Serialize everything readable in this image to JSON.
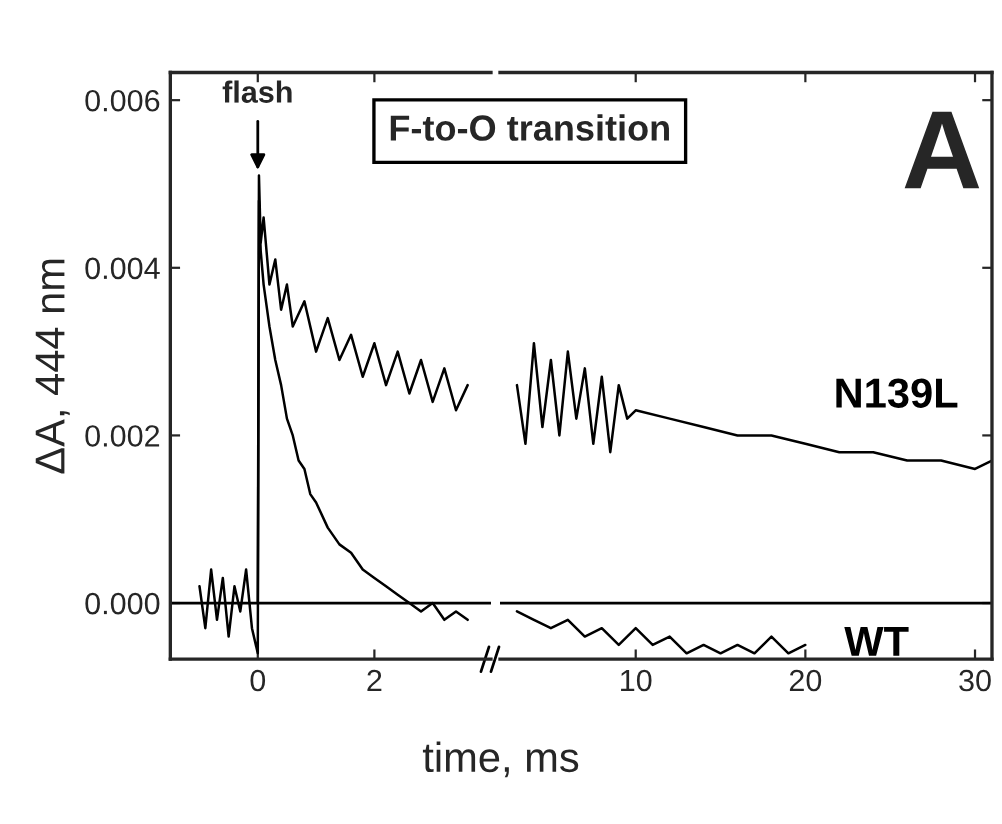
{
  "chart_data": [
    {
      "type": "line",
      "xlabel": "time, ms",
      "ylabel": "ΔA, 444 nm",
      "xlim": [
        -1.5,
        4
      ],
      "xticks": [
        0,
        2
      ],
      "ylim": [
        -0.00067,
        0.00633
      ],
      "yticks": [
        {
          "value": 0,
          "label": "0.000"
        },
        {
          "value": 0.002,
          "label": "0.002"
        },
        {
          "value": 0.004,
          "label": "0.004"
        },
        {
          "value": 0.006,
          "label": "0.006"
        }
      ],
      "legend": false,
      "grid": false,
      "ref_lines": [
        {
          "axis": "y",
          "value": 0,
          "color": "#000000"
        }
      ],
      "annotations": [
        {
          "text": "flash",
          "x": 0,
          "y": 0.0051
        },
        "F-to-O transition"
      ],
      "series": [
        {
          "color": "#000000",
          "x": [
            -1.0,
            -0.9,
            -0.8,
            -0.7,
            -0.6,
            -0.5,
            -0.4,
            -0.3,
            -0.2,
            -0.1,
            0.0,
            0.02,
            0.05,
            0.1,
            0.2,
            0.3,
            0.4,
            0.5,
            0.6,
            0.7,
            0.8,
            0.9,
            1.0,
            1.2,
            1.4,
            1.6,
            1.8,
            2.0,
            2.2,
            2.4,
            2.6,
            2.8,
            3.0,
            3.2,
            3.4,
            3.6
          ],
          "values": [
            0.0002,
            -0.0003,
            0.0004,
            -0.0002,
            0.0003,
            -0.0004,
            0.0002,
            -0.0001,
            0.0004,
            -0.0003,
            -0.0006,
            0.0048,
            0.0042,
            0.0038,
            0.0033,
            0.0029,
            0.0026,
            0.0022,
            0.002,
            0.0017,
            0.0016,
            0.0013,
            0.0012,
            0.0009,
            0.0007,
            0.0006,
            0.0004,
            0.0003,
            0.0002,
            0.0001,
            0.0,
            -0.0001,
            0.0,
            -0.0002,
            -0.0001,
            -0.0002
          ]
        },
        {
          "color": "#000000",
          "x": [
            0.0,
            0.02,
            0.05,
            0.1,
            0.2,
            0.3,
            0.4,
            0.5,
            0.6,
            0.8,
            1.0,
            1.2,
            1.4,
            1.6,
            1.8,
            2.0,
            2.2,
            2.4,
            2.6,
            2.8,
            3.0,
            3.2,
            3.4,
            3.6
          ],
          "values": [
            0.0,
            0.0051,
            0.0043,
            0.0046,
            0.0038,
            0.0041,
            0.0035,
            0.0038,
            0.0033,
            0.0036,
            0.003,
            0.0034,
            0.0029,
            0.0032,
            0.0027,
            0.0031,
            0.0026,
            0.003,
            0.0025,
            0.0029,
            0.0024,
            0.0028,
            0.0023,
            0.0026
          ]
        }
      ]
    },
    {
      "type": "line",
      "xlim": [
        2,
        31
      ],
      "xticks": [
        10,
        20,
        30
      ],
      "ylim": [
        -0.00067,
        0.00633
      ],
      "tick_labels": "x",
      "legend": false,
      "grid": false,
      "ref_lines": [
        {
          "axis": "y",
          "value": 0,
          "color": "#000000"
        }
      ],
      "annotations": [
        "A"
      ],
      "series": [
        {
          "name": "N139L",
          "color": "#000000",
          "x": [
            3,
            3.5,
            4,
            4.5,
            5,
            5.5,
            6,
            6.5,
            7,
            7.5,
            8,
            8.5,
            9,
            9.5,
            10,
            12,
            14,
            16,
            18,
            20,
            22,
            24,
            26,
            28,
            30,
            31
          ],
          "values": [
            0.0026,
            0.0019,
            0.0031,
            0.0021,
            0.0029,
            0.002,
            0.003,
            0.0022,
            0.0028,
            0.0019,
            0.0027,
            0.0018,
            0.0026,
            0.0022,
            0.0023,
            0.0022,
            0.0021,
            0.002,
            0.002,
            0.0019,
            0.0018,
            0.0018,
            0.0017,
            0.0017,
            0.0016,
            0.0017
          ]
        },
        {
          "name": "WT",
          "color": "#000000",
          "x": [
            3,
            4,
            5,
            6,
            7,
            8,
            9,
            10,
            11,
            12,
            13,
            14,
            15,
            16,
            17,
            18,
            19,
            20
          ],
          "values": [
            -0.0001,
            -0.0002,
            -0.0003,
            -0.0002,
            -0.0004,
            -0.0003,
            -0.0005,
            -0.0003,
            -0.0005,
            -0.0004,
            -0.0006,
            -0.0005,
            -0.0006,
            -0.0005,
            -0.0006,
            -0.0004,
            -0.0006,
            -0.0005
          ]
        }
      ]
    }
  ]
}
